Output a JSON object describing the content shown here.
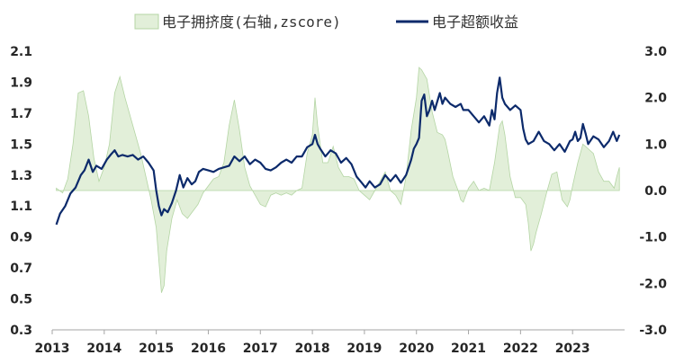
{
  "chart_data": {
    "type": "line+area",
    "legend": [
      {
        "label": "电子拥挤度(右轴,zscore)",
        "kind": "area",
        "color": "#e2efd9",
        "edge": "#b4d5a4"
      },
      {
        "label": "电子超额收益",
        "kind": "line",
        "color": "#0c2a6b"
      }
    ],
    "legend_position": "top",
    "x_ticks": [
      "2013",
      "2014",
      "2015",
      "2016",
      "2017",
      "2018",
      "2019",
      "2020",
      "2021",
      "2022",
      "2023"
    ],
    "x_range": [
      2013.0,
      2024.0
    ],
    "left_axis": {
      "ticks": [
        "0.3",
        "0.5",
        "0.7",
        "0.9",
        "1.1",
        "1.3",
        "1.5",
        "1.7",
        "1.9",
        "2.1"
      ],
      "range": [
        0.3,
        2.1
      ]
    },
    "right_axis": {
      "ticks": [
        "-3.0",
        "-2.0",
        "-1.0",
        "0.0",
        "1.0",
        "2.0",
        "3.0"
      ],
      "range": [
        -3.0,
        3.0
      ]
    },
    "grid": false,
    "series": [
      {
        "name": "电子超额收益",
        "axis": "left",
        "color": "#0c2a6b",
        "points": [
          [
            2013.08,
            0.98
          ],
          [
            2013.15,
            1.05
          ],
          [
            2013.25,
            1.1
          ],
          [
            2013.35,
            1.18
          ],
          [
            2013.45,
            1.22
          ],
          [
            2013.55,
            1.3
          ],
          [
            2013.62,
            1.33
          ],
          [
            2013.7,
            1.4
          ],
          [
            2013.78,
            1.32
          ],
          [
            2013.85,
            1.36
          ],
          [
            2013.95,
            1.34
          ],
          [
            2014.05,
            1.4
          ],
          [
            2014.12,
            1.43
          ],
          [
            2014.2,
            1.46
          ],
          [
            2014.27,
            1.42
          ],
          [
            2014.35,
            1.43
          ],
          [
            2014.45,
            1.42
          ],
          [
            2014.55,
            1.43
          ],
          [
            2014.65,
            1.4
          ],
          [
            2014.75,
            1.42
          ],
          [
            2014.85,
            1.38
          ],
          [
            2014.95,
            1.33
          ],
          [
            2015.0,
            1.2
          ],
          [
            2015.05,
            1.1
          ],
          [
            2015.1,
            1.04
          ],
          [
            2015.15,
            1.08
          ],
          [
            2015.22,
            1.06
          ],
          [
            2015.3,
            1.12
          ],
          [
            2015.38,
            1.2
          ],
          [
            2015.45,
            1.3
          ],
          [
            2015.52,
            1.22
          ],
          [
            2015.6,
            1.28
          ],
          [
            2015.68,
            1.24
          ],
          [
            2015.75,
            1.26
          ],
          [
            2015.82,
            1.32
          ],
          [
            2015.9,
            1.34
          ],
          [
            2016.0,
            1.33
          ],
          [
            2016.1,
            1.32
          ],
          [
            2016.2,
            1.34
          ],
          [
            2016.3,
            1.35
          ],
          [
            2016.4,
            1.36
          ],
          [
            2016.5,
            1.42
          ],
          [
            2016.6,
            1.39
          ],
          [
            2016.7,
            1.42
          ],
          [
            2016.8,
            1.37
          ],
          [
            2016.9,
            1.4
          ],
          [
            2017.0,
            1.38
          ],
          [
            2017.1,
            1.34
          ],
          [
            2017.2,
            1.33
          ],
          [
            2017.3,
            1.35
          ],
          [
            2017.4,
            1.38
          ],
          [
            2017.5,
            1.4
          ],
          [
            2017.6,
            1.38
          ],
          [
            2017.7,
            1.42
          ],
          [
            2017.8,
            1.42
          ],
          [
            2017.9,
            1.48
          ],
          [
            2018.0,
            1.5
          ],
          [
            2018.05,
            1.56
          ],
          [
            2018.1,
            1.5
          ],
          [
            2018.15,
            1.47
          ],
          [
            2018.25,
            1.42
          ],
          [
            2018.35,
            1.46
          ],
          [
            2018.45,
            1.44
          ],
          [
            2018.55,
            1.38
          ],
          [
            2018.65,
            1.41
          ],
          [
            2018.75,
            1.37
          ],
          [
            2018.85,
            1.29
          ],
          [
            2018.95,
            1.25
          ],
          [
            2019.02,
            1.22
          ],
          [
            2019.1,
            1.26
          ],
          [
            2019.2,
            1.22
          ],
          [
            2019.3,
            1.24
          ],
          [
            2019.4,
            1.3
          ],
          [
            2019.5,
            1.26
          ],
          [
            2019.6,
            1.3
          ],
          [
            2019.7,
            1.25
          ],
          [
            2019.8,
            1.3
          ],
          [
            2019.9,
            1.4
          ],
          [
            2019.95,
            1.47
          ],
          [
            2020.0,
            1.5
          ],
          [
            2020.05,
            1.54
          ],
          [
            2020.1,
            1.78
          ],
          [
            2020.15,
            1.82
          ],
          [
            2020.2,
            1.68
          ],
          [
            2020.25,
            1.72
          ],
          [
            2020.3,
            1.78
          ],
          [
            2020.35,
            1.72
          ],
          [
            2020.45,
            1.83
          ],
          [
            2020.5,
            1.76
          ],
          [
            2020.55,
            1.8
          ],
          [
            2020.65,
            1.76
          ],
          [
            2020.75,
            1.74
          ],
          [
            2020.85,
            1.76
          ],
          [
            2020.9,
            1.72
          ],
          [
            2021.0,
            1.72
          ],
          [
            2021.1,
            1.68
          ],
          [
            2021.2,
            1.64
          ],
          [
            2021.3,
            1.68
          ],
          [
            2021.4,
            1.62
          ],
          [
            2021.45,
            1.72
          ],
          [
            2021.5,
            1.66
          ],
          [
            2021.55,
            1.83
          ],
          [
            2021.6,
            1.93
          ],
          [
            2021.65,
            1.8
          ],
          [
            2021.7,
            1.76
          ],
          [
            2021.8,
            1.72
          ],
          [
            2021.9,
            1.75
          ],
          [
            2022.0,
            1.72
          ],
          [
            2022.05,
            1.6
          ],
          [
            2022.1,
            1.53
          ],
          [
            2022.15,
            1.5
          ],
          [
            2022.25,
            1.52
          ],
          [
            2022.35,
            1.58
          ],
          [
            2022.45,
            1.52
          ],
          [
            2022.55,
            1.5
          ],
          [
            2022.65,
            1.46
          ],
          [
            2022.75,
            1.5
          ],
          [
            2022.85,
            1.45
          ],
          [
            2022.95,
            1.52
          ],
          [
            2023.0,
            1.53
          ],
          [
            2023.05,
            1.58
          ],
          [
            2023.1,
            1.52
          ],
          [
            2023.15,
            1.54
          ],
          [
            2023.2,
            1.63
          ],
          [
            2023.25,
            1.57
          ],
          [
            2023.3,
            1.5
          ],
          [
            2023.4,
            1.55
          ],
          [
            2023.5,
            1.53
          ],
          [
            2023.6,
            1.48
          ],
          [
            2023.7,
            1.52
          ],
          [
            2023.78,
            1.58
          ],
          [
            2023.85,
            1.52
          ],
          [
            2023.9,
            1.56
          ]
        ]
      },
      {
        "name": "电子拥挤度(右轴,zscore)",
        "axis": "right",
        "color": "#e2efd9",
        "points": [
          [
            2013.08,
            0.05
          ],
          [
            2013.2,
            -0.05
          ],
          [
            2013.3,
            0.25
          ],
          [
            2013.4,
            1.0
          ],
          [
            2013.5,
            2.1
          ],
          [
            2013.6,
            2.15
          ],
          [
            2013.7,
            1.6
          ],
          [
            2013.8,
            0.7
          ],
          [
            2013.9,
            0.2
          ],
          [
            2014.0,
            0.5
          ],
          [
            2014.1,
            1.0
          ],
          [
            2014.2,
            2.1
          ],
          [
            2014.3,
            2.45
          ],
          [
            2014.4,
            2.0
          ],
          [
            2014.5,
            1.6
          ],
          [
            2014.6,
            1.2
          ],
          [
            2014.7,
            0.8
          ],
          [
            2014.8,
            0.3
          ],
          [
            2014.9,
            -0.2
          ],
          [
            2015.0,
            -0.8
          ],
          [
            2015.05,
            -1.5
          ],
          [
            2015.1,
            -2.2
          ],
          [
            2015.15,
            -2.05
          ],
          [
            2015.2,
            -1.3
          ],
          [
            2015.3,
            -0.6
          ],
          [
            2015.4,
            -0.2
          ],
          [
            2015.5,
            -0.5
          ],
          [
            2015.6,
            -0.6
          ],
          [
            2015.7,
            -0.45
          ],
          [
            2015.8,
            -0.3
          ],
          [
            2015.9,
            -0.05
          ],
          [
            2016.0,
            0.1
          ],
          [
            2016.1,
            0.25
          ],
          [
            2016.2,
            0.3
          ],
          [
            2016.3,
            0.6
          ],
          [
            2016.4,
            1.4
          ],
          [
            2016.5,
            1.95
          ],
          [
            2016.6,
            1.3
          ],
          [
            2016.7,
            0.5
          ],
          [
            2016.8,
            0.1
          ],
          [
            2016.9,
            -0.1
          ],
          [
            2017.0,
            -0.3
          ],
          [
            2017.1,
            -0.35
          ],
          [
            2017.2,
            -0.1
          ],
          [
            2017.3,
            -0.05
          ],
          [
            2017.4,
            -0.1
          ],
          [
            2017.5,
            -0.05
          ],
          [
            2017.6,
            -0.1
          ],
          [
            2017.7,
            0.0
          ],
          [
            2017.8,
            0.05
          ],
          [
            2017.9,
            0.8
          ],
          [
            2018.0,
            1.2
          ],
          [
            2018.05,
            2.0
          ],
          [
            2018.1,
            1.4
          ],
          [
            2018.2,
            0.6
          ],
          [
            2018.3,
            0.6
          ],
          [
            2018.4,
            0.95
          ],
          [
            2018.5,
            0.5
          ],
          [
            2018.6,
            0.3
          ],
          [
            2018.7,
            0.3
          ],
          [
            2018.8,
            0.25
          ],
          [
            2018.9,
            0.0
          ],
          [
            2019.0,
            -0.1
          ],
          [
            2019.1,
            -0.2
          ],
          [
            2019.2,
            0.0
          ],
          [
            2019.3,
            0.2
          ],
          [
            2019.4,
            0.4
          ],
          [
            2019.5,
            0.0
          ],
          [
            2019.6,
            -0.1
          ],
          [
            2019.7,
            -0.3
          ],
          [
            2019.8,
            0.3
          ],
          [
            2019.9,
            1.3
          ],
          [
            2020.0,
            2.0
          ],
          [
            2020.05,
            2.65
          ],
          [
            2020.1,
            2.6
          ],
          [
            2020.2,
            2.4
          ],
          [
            2020.3,
            1.7
          ],
          [
            2020.4,
            1.25
          ],
          [
            2020.5,
            1.2
          ],
          [
            2020.55,
            1.1
          ],
          [
            2020.6,
            0.85
          ],
          [
            2020.7,
            0.3
          ],
          [
            2020.8,
            0.0
          ],
          [
            2020.85,
            -0.2
          ],
          [
            2020.9,
            -0.25
          ],
          [
            2021.0,
            0.05
          ],
          [
            2021.1,
            0.2
          ],
          [
            2021.2,
            0.0
          ],
          [
            2021.3,
            0.05
          ],
          [
            2021.4,
            0.0
          ],
          [
            2021.5,
            0.6
          ],
          [
            2021.6,
            1.4
          ],
          [
            2021.65,
            1.5
          ],
          [
            2021.7,
            1.2
          ],
          [
            2021.8,
            0.3
          ],
          [
            2021.9,
            -0.15
          ],
          [
            2022.0,
            -0.15
          ],
          [
            2022.1,
            -0.3
          ],
          [
            2022.15,
            -0.7
          ],
          [
            2022.2,
            -1.3
          ],
          [
            2022.25,
            -1.15
          ],
          [
            2022.3,
            -0.9
          ],
          [
            2022.4,
            -0.5
          ],
          [
            2022.5,
            -0.05
          ],
          [
            2022.6,
            0.35
          ],
          [
            2022.7,
            0.4
          ],
          [
            2022.8,
            -0.2
          ],
          [
            2022.9,
            -0.35
          ],
          [
            2022.95,
            -0.2
          ],
          [
            2023.0,
            0.1
          ],
          [
            2023.1,
            0.6
          ],
          [
            2023.2,
            1.0
          ],
          [
            2023.3,
            0.9
          ],
          [
            2023.4,
            0.8
          ],
          [
            2023.5,
            0.4
          ],
          [
            2023.6,
            0.2
          ],
          [
            2023.7,
            0.2
          ],
          [
            2023.8,
            0.05
          ],
          [
            2023.85,
            0.3
          ],
          [
            2023.9,
            0.5
          ]
        ]
      }
    ]
  }
}
